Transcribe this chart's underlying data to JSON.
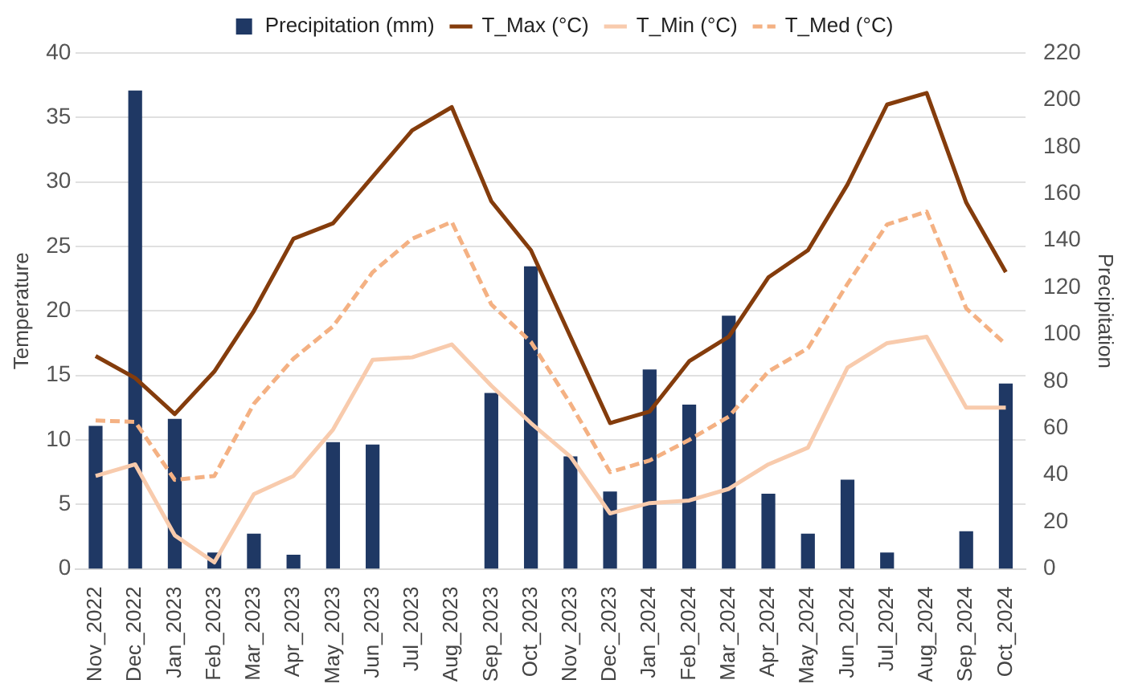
{
  "chart_data": {
    "type": "line",
    "ylabel": "Temperature",
    "y2label": "Precipitation",
    "categories": [
      "Nov_2022",
      "Dec_2022",
      "Jan_2023",
      "Feb_2023",
      "Mar_2023",
      "Apr_2023",
      "May_2023",
      "Jun_2023",
      "Jul_2023",
      "Aug_2023",
      "Sep_2023",
      "Oct_2023",
      "Nov_2023",
      "Dec_2023",
      "Jan_2024",
      "Feb_2024",
      "Mar_2024",
      "Apr_2024",
      "May_2024",
      "Jun_2024",
      "Jul_2024",
      "Aug_2024",
      "Sep_2024",
      "Oct_2024"
    ],
    "series": [
      {
        "name": "Precipitation (mm)",
        "type": "bar",
        "axis": "y2",
        "color": "#1f3864",
        "values": [
          61,
          204,
          64,
          7,
          15,
          6,
          54,
          53,
          0,
          0,
          75,
          129,
          48,
          33,
          85,
          70,
          108,
          32,
          15,
          38,
          7,
          0,
          16,
          79
        ]
      },
      {
        "name": "T_Max (°C)",
        "color": "#843c0c",
        "line_style": "solid",
        "values": [
          16.5,
          14.8,
          12,
          15.3,
          20,
          25.6,
          26.8,
          30.4,
          34,
          35.8,
          28.5,
          24.7,
          18,
          11.3,
          12.2,
          16.1,
          18,
          22.6,
          24.7,
          29.8,
          36,
          36.9,
          28.4,
          23
        ]
      },
      {
        "name": "T_Min (°C)",
        "color": "#f8cbad",
        "line_style": "solid",
        "values": [
          7.2,
          8.1,
          2.6,
          0.5,
          5.8,
          7.2,
          10.8,
          16.2,
          16.4,
          17.4,
          14.2,
          11.3,
          8.7,
          4.3,
          5.1,
          5.3,
          6.2,
          8.1,
          9.4,
          15.6,
          17.5,
          18,
          12.5,
          12.5
        ]
      },
      {
        "name": "T_Med (°C)",
        "color": "#f4b183",
        "line_style": "dashed",
        "values": [
          11.5,
          11.4,
          6.9,
          7.2,
          12.8,
          16.3,
          18.8,
          23,
          25.6,
          26.9,
          20.5,
          17.6,
          12.8,
          7.5,
          8.4,
          10,
          11.8,
          15.3,
          17.1,
          22.1,
          26.7,
          27.7,
          20.2,
          17.4
        ]
      }
    ],
    "ylim": [
      0,
      40
    ],
    "yticks": [
      0,
      5,
      10,
      15,
      20,
      25,
      30,
      35,
      40
    ],
    "y2lim": [
      0,
      220
    ],
    "y2ticks": [
      0,
      20,
      40,
      60,
      80,
      100,
      120,
      140,
      160,
      180,
      200,
      220
    ],
    "grid": "y",
    "legend": "top",
    "marker": "none"
  }
}
